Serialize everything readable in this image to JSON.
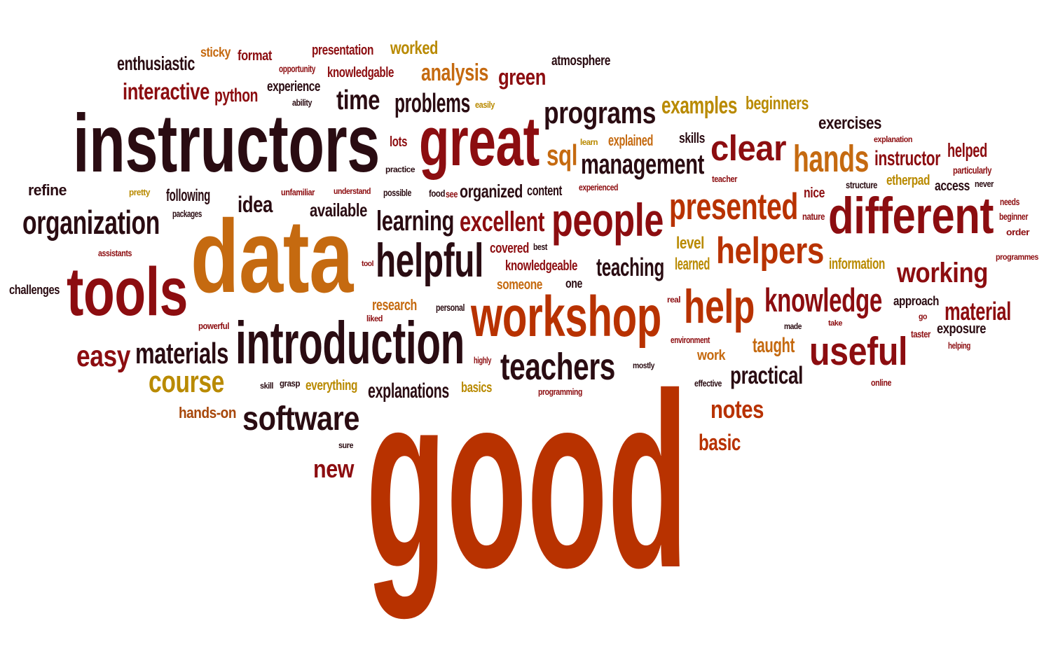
{
  "palette": {
    "c1": "#2a0c12",
    "c2": "#8c0d10",
    "c3": "#b83200",
    "c4": "#c56a10",
    "c5": "#a7470a",
    "c6": "#b98a00"
  },
  "words": [
    {
      "text": "good",
      "color": "c3"
    },
    {
      "text": "data",
      "color": "c4"
    },
    {
      "text": "instructors",
      "color": "c1"
    },
    {
      "text": "great",
      "color": "c2"
    },
    {
      "text": "introduction",
      "color": "c1"
    },
    {
      "text": "workshop",
      "color": "c3"
    },
    {
      "text": "tools",
      "color": "c2"
    },
    {
      "text": "people",
      "color": "c2"
    },
    {
      "text": "different",
      "color": "c2"
    },
    {
      "text": "helpful",
      "color": "c1"
    },
    {
      "text": "useful",
      "color": "c2"
    },
    {
      "text": "help",
      "color": "c3"
    },
    {
      "text": "presented",
      "color": "c3"
    },
    {
      "text": "helpers",
      "color": "c3"
    },
    {
      "text": "teachers",
      "color": "c1"
    },
    {
      "text": "software",
      "color": "c1"
    },
    {
      "text": "clear",
      "color": "c2"
    },
    {
      "text": "hands",
      "color": "c4"
    },
    {
      "text": "knowledge",
      "color": "c2"
    },
    {
      "text": "organization",
      "color": "c1"
    },
    {
      "text": "programs",
      "color": "c1"
    },
    {
      "text": "course",
      "color": "c6"
    },
    {
      "text": "materials",
      "color": "c1"
    },
    {
      "text": "easy",
      "color": "c2"
    },
    {
      "text": "excellent",
      "color": "c2"
    },
    {
      "text": "learning",
      "color": "c1"
    },
    {
      "text": "management",
      "color": "c1"
    },
    {
      "text": "working",
      "color": "c2"
    },
    {
      "text": "problems",
      "color": "c1"
    },
    {
      "text": "time",
      "color": "c1"
    },
    {
      "text": "notes",
      "color": "c3"
    },
    {
      "text": "material",
      "color": "c2"
    },
    {
      "text": "practical",
      "color": "c1"
    },
    {
      "text": "teaching",
      "color": "c1"
    },
    {
      "text": "explanations",
      "color": "c1"
    },
    {
      "text": "new",
      "color": "c2"
    },
    {
      "text": "examples",
      "color": "c6"
    },
    {
      "text": "analysis",
      "color": "c4"
    },
    {
      "text": "interactive",
      "color": "c2"
    },
    {
      "text": "green",
      "color": "c2"
    },
    {
      "text": "sql",
      "color": "c4"
    },
    {
      "text": "idea",
      "color": "c1"
    },
    {
      "text": "basic",
      "color": "c3"
    },
    {
      "text": "instructor",
      "color": "c2"
    },
    {
      "text": "taught",
      "color": "c4"
    },
    {
      "text": "helped",
      "color": "c2"
    },
    {
      "text": "available",
      "color": "c1"
    },
    {
      "text": "enthusiastic",
      "color": "c1"
    },
    {
      "text": "beginners",
      "color": "c6"
    },
    {
      "text": "exercises",
      "color": "c1"
    },
    {
      "text": "worked",
      "color": "c6"
    },
    {
      "text": "python",
      "color": "c2"
    },
    {
      "text": "organized",
      "color": "c1"
    },
    {
      "text": "following",
      "color": "c1"
    },
    {
      "text": "level",
      "color": "c6"
    },
    {
      "text": "learned",
      "color": "c6"
    },
    {
      "text": "presentation",
      "color": "c2"
    },
    {
      "text": "hands-on",
      "color": "c5"
    },
    {
      "text": "refine",
      "color": "c1"
    },
    {
      "text": "exposure",
      "color": "c1"
    },
    {
      "text": "information",
      "color": "c6"
    },
    {
      "text": "research",
      "color": "c4"
    },
    {
      "text": "everything",
      "color": "c6"
    },
    {
      "text": "basics",
      "color": "c6"
    },
    {
      "text": "atmosphere",
      "color": "c1"
    },
    {
      "text": "covered",
      "color": "c2"
    },
    {
      "text": "experience",
      "color": "c1"
    },
    {
      "text": "sticky",
      "color": "c4"
    },
    {
      "text": "format",
      "color": "c2"
    },
    {
      "text": "explained",
      "color": "c4"
    },
    {
      "text": "etherpad",
      "color": "c6"
    },
    {
      "text": "knowledgeable",
      "color": "c2"
    },
    {
      "text": "knowledgable",
      "color": "c2"
    },
    {
      "text": "content",
      "color": "c1"
    },
    {
      "text": "access",
      "color": "c1"
    },
    {
      "text": "skills",
      "color": "c1"
    },
    {
      "text": "nice",
      "color": "c2"
    },
    {
      "text": "approach",
      "color": "c1"
    },
    {
      "text": "challenges",
      "color": "c1"
    },
    {
      "text": "someone",
      "color": "c4"
    },
    {
      "text": "work",
      "color": "c4"
    },
    {
      "text": "one",
      "color": "c1"
    },
    {
      "text": "lots",
      "color": "c2"
    },
    {
      "text": "opportunity",
      "color": "c2"
    },
    {
      "text": "ability",
      "color": "c1"
    },
    {
      "text": "easily",
      "color": "c6"
    },
    {
      "text": "learn",
      "color": "c6"
    },
    {
      "text": "explanation",
      "color": "c2"
    },
    {
      "text": "particularly",
      "color": "c2"
    },
    {
      "text": "practice",
      "color": "c1"
    },
    {
      "text": "teacher",
      "color": "c2"
    },
    {
      "text": "structure",
      "color": "c1"
    },
    {
      "text": "never",
      "color": "c1"
    },
    {
      "text": "pretty",
      "color": "c6"
    },
    {
      "text": "unfamiliar",
      "color": "c2"
    },
    {
      "text": "understand",
      "color": "c2"
    },
    {
      "text": "possible",
      "color": "c1"
    },
    {
      "text": "food",
      "color": "c1"
    },
    {
      "text": "see",
      "color": "c2"
    },
    {
      "text": "experienced",
      "color": "c2"
    },
    {
      "text": "packages",
      "color": "c1"
    },
    {
      "text": "needs",
      "color": "c2"
    },
    {
      "text": "beginner",
      "color": "c2"
    },
    {
      "text": "order",
      "color": "c2"
    },
    {
      "text": "nature",
      "color": "c2"
    },
    {
      "text": "best",
      "color": "c1"
    },
    {
      "text": "assistants",
      "color": "c2"
    },
    {
      "text": "tool",
      "color": "c2"
    },
    {
      "text": "programmes",
      "color": "c2"
    },
    {
      "text": "real",
      "color": "c2"
    },
    {
      "text": "personal",
      "color": "c1"
    },
    {
      "text": "liked",
      "color": "c2"
    },
    {
      "text": "go",
      "color": "c2"
    },
    {
      "text": "made",
      "color": "c1"
    },
    {
      "text": "take",
      "color": "c2"
    },
    {
      "text": "taster",
      "color": "c2"
    },
    {
      "text": "powerful",
      "color": "c2"
    },
    {
      "text": "environment",
      "color": "c2"
    },
    {
      "text": "helping",
      "color": "c2"
    },
    {
      "text": "highly",
      "color": "c2"
    },
    {
      "text": "mostly",
      "color": "c1"
    },
    {
      "text": "skill",
      "color": "c1"
    },
    {
      "text": "grasp",
      "color": "c1"
    },
    {
      "text": "programming",
      "color": "c2"
    },
    {
      "text": "effective",
      "color": "c1"
    },
    {
      "text": "online",
      "color": "c2"
    },
    {
      "text": "sure",
      "color": "c1"
    }
  ]
}
